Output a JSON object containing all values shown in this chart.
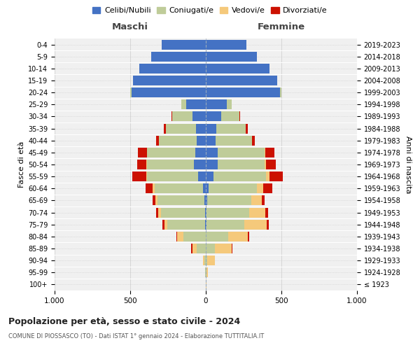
{
  "age_groups": [
    "100+",
    "95-99",
    "90-94",
    "85-89",
    "80-84",
    "75-79",
    "70-74",
    "65-69",
    "60-64",
    "55-59",
    "50-54",
    "45-49",
    "40-44",
    "35-39",
    "30-34",
    "25-29",
    "20-24",
    "15-19",
    "10-14",
    "5-9",
    "0-4"
  ],
  "birth_years": [
    "≤ 1923",
    "1924-1928",
    "1929-1933",
    "1934-1938",
    "1939-1943",
    "1944-1948",
    "1949-1953",
    "1954-1958",
    "1959-1963",
    "1964-1968",
    "1969-1973",
    "1974-1978",
    "1979-1983",
    "1984-1988",
    "1989-1993",
    "1994-1998",
    "1999-2003",
    "2004-2008",
    "2009-2013",
    "2014-2018",
    "2019-2023"
  ],
  "males": {
    "celibi": [
      0,
      0,
      0,
      0,
      0,
      5,
      5,
      10,
      20,
      50,
      80,
      70,
      60,
      65,
      90,
      130,
      490,
      480,
      440,
      360,
      290
    ],
    "coniugati": [
      0,
      5,
      10,
      60,
      150,
      250,
      290,
      310,
      320,
      340,
      310,
      320,
      250,
      200,
      130,
      30,
      10,
      0,
      0,
      0,
      0
    ],
    "vedovi": [
      0,
      0,
      10,
      30,
      40,
      20,
      20,
      15,
      10,
      5,
      5,
      0,
      0,
      0,
      0,
      0,
      0,
      0,
      0,
      0,
      0
    ],
    "divorziati": [
      0,
      0,
      0,
      5,
      5,
      10,
      15,
      15,
      50,
      90,
      60,
      60,
      20,
      15,
      5,
      0,
      0,
      0,
      0,
      0,
      0
    ]
  },
  "females": {
    "nubili": [
      0,
      0,
      0,
      0,
      0,
      5,
      5,
      10,
      20,
      50,
      80,
      80,
      65,
      70,
      100,
      140,
      490,
      470,
      420,
      340,
      270
    ],
    "coniugate": [
      0,
      5,
      10,
      60,
      150,
      250,
      280,
      290,
      320,
      350,
      310,
      310,
      240,
      195,
      120,
      30,
      10,
      0,
      0,
      0,
      0
    ],
    "vedove": [
      5,
      10,
      50,
      110,
      130,
      150,
      110,
      70,
      40,
      20,
      10,
      5,
      0,
      0,
      0,
      0,
      0,
      0,
      0,
      0,
      0
    ],
    "divorziate": [
      0,
      0,
      0,
      5,
      5,
      10,
      15,
      20,
      60,
      90,
      65,
      60,
      20,
      15,
      5,
      0,
      0,
      0,
      0,
      0,
      0
    ]
  },
  "colors": {
    "celibi": "#4472C4",
    "coniugati": "#BFCC99",
    "vedovi": "#F5C97B",
    "divorziati": "#CC1100"
  },
  "xlim": 1000,
  "title": "Popolazione per età, sesso e stato civile - 2024",
  "subtitle": "COMUNE DI PIOSSASCO (TO) - Dati ISTAT 1° gennaio 2024 - Elaborazione TUTTITALIA.IT",
  "left_label": "Maschi",
  "right_label": "Femmine",
  "ylabel": "Fasce di età",
  "right_ylabel": "Anni di nascita",
  "legend_labels": [
    "Celibi/Nubili",
    "Coniugati/e",
    "Vedovi/e",
    "Divorziati/e"
  ]
}
